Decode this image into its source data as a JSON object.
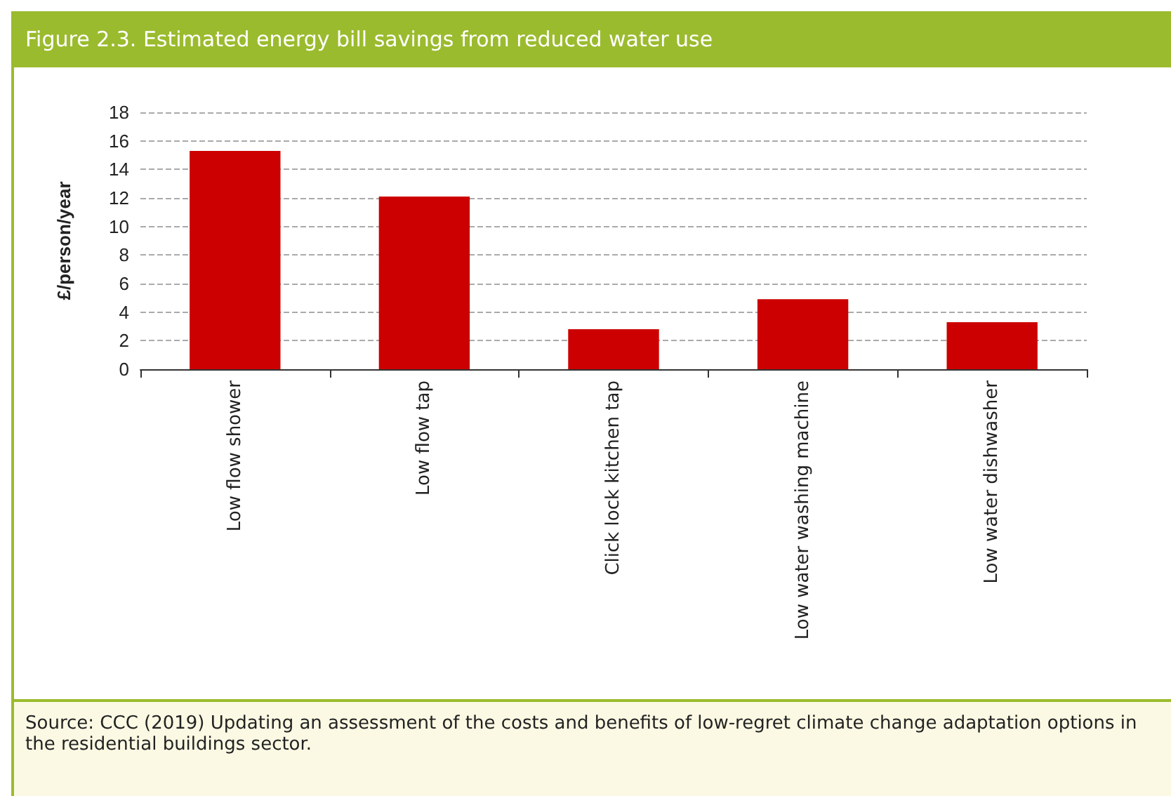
{
  "chart_data": {
    "type": "bar",
    "title": "Figure 2.3. Estimated energy bill savings from reduced water use",
    "ylabel": "£/person/year",
    "categories": [
      "Low flow shower",
      "Low flow tap",
      "Click lock kitchen tap",
      "Low water washing machine",
      "Low water dishwasher"
    ],
    "values": [
      15.3,
      12.1,
      2.8,
      4.9,
      3.3
    ],
    "color": "#cc0000",
    "ylim": [
      0,
      18
    ],
    "yticks": [
      0,
      2,
      4,
      6,
      8,
      10,
      12,
      14,
      16,
      18
    ],
    "grid": "y",
    "annotations": [
      "Source: CCC (2019) Updating an assessment of the costs and benefits of low-regret climate change adaptation options in the residential buildings sector."
    ]
  }
}
